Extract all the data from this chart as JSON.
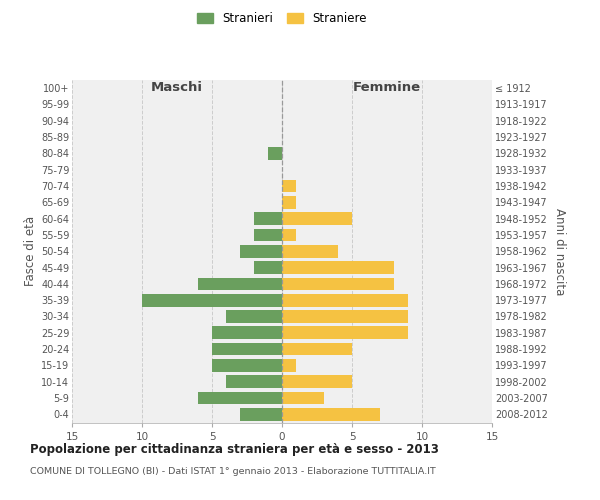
{
  "age_groups": [
    "0-4",
    "5-9",
    "10-14",
    "15-19",
    "20-24",
    "25-29",
    "30-34",
    "35-39",
    "40-44",
    "45-49",
    "50-54",
    "55-59",
    "60-64",
    "65-69",
    "70-74",
    "75-79",
    "80-84",
    "85-89",
    "90-94",
    "95-99",
    "100+"
  ],
  "birth_years": [
    "2008-2012",
    "2003-2007",
    "1998-2002",
    "1993-1997",
    "1988-1992",
    "1983-1987",
    "1978-1982",
    "1973-1977",
    "1968-1972",
    "1963-1967",
    "1958-1962",
    "1953-1957",
    "1948-1952",
    "1943-1947",
    "1938-1942",
    "1933-1937",
    "1928-1932",
    "1923-1927",
    "1918-1922",
    "1913-1917",
    "≤ 1912"
  ],
  "maschi": [
    3,
    6,
    4,
    5,
    5,
    5,
    4,
    10,
    6,
    2,
    3,
    2,
    2,
    0,
    0,
    0,
    1,
    0,
    0,
    0,
    0
  ],
  "femmine": [
    7,
    3,
    5,
    1,
    5,
    9,
    9,
    9,
    8,
    8,
    4,
    1,
    5,
    1,
    1,
    0,
    0,
    0,
    0,
    0,
    0
  ],
  "male_color": "#6a9f5e",
  "female_color": "#f5c242",
  "background_color": "#f0f0f0",
  "grid_color": "#cccccc",
  "title": "Popolazione per cittadinanza straniera per età e sesso - 2013",
  "subtitle": "COMUNE DI TOLLEGNO (BI) - Dati ISTAT 1° gennaio 2013 - Elaborazione TUTTITALIA.IT",
  "xlabel_left": "Maschi",
  "xlabel_right": "Femmine",
  "ylabel_left": "Fasce di età",
  "ylabel_right": "Anni di nascita",
  "legend_male": "Stranieri",
  "legend_female": "Straniere",
  "xlim": 15
}
